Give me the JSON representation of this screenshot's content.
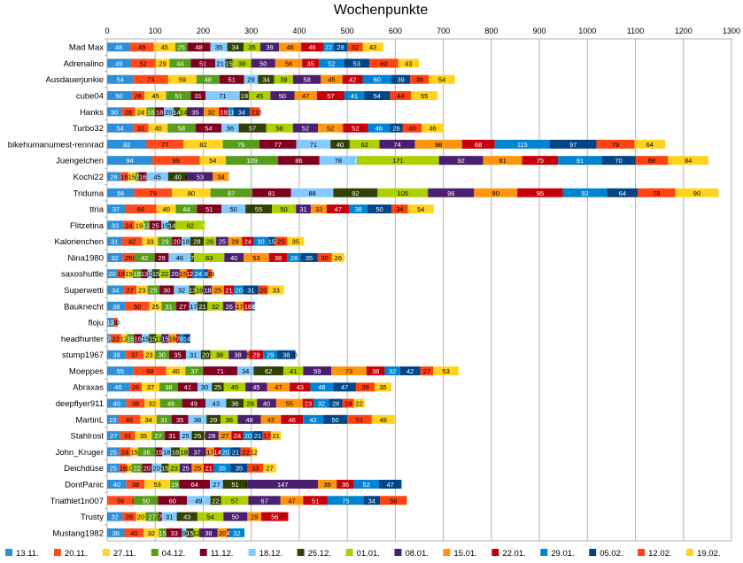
{
  "chart_data": {
    "type": "bar",
    "orientation": "horizontal",
    "stacked": true,
    "title": "Wochenpunkte",
    "xlim": [
      0,
      1300
    ],
    "xticks": [
      0,
      100,
      200,
      300,
      400,
      500,
      600,
      700,
      800,
      900,
      1000,
      1100,
      1200,
      1300
    ],
    "grid": true,
    "legend_position": "bottom",
    "series_names": [
      "13.11.",
      "20.11.",
      "27.11.",
      "04.12.",
      "11.12.",
      "18.12.",
      "25.12.",
      "01.01.",
      "08.01.",
      "15.01.",
      "22.01.",
      "29.01.",
      "05.02.",
      "12.02.",
      "19.02."
    ],
    "colors": [
      "#2e8fd6",
      "#ff4a1c",
      "#ffd320",
      "#579d1c",
      "#7e0021",
      "#83caff",
      "#314004",
      "#aecf00",
      "#4b1f6f",
      "#ff950e",
      "#c5000b",
      "#0084d1",
      "#004586",
      "#ff420e",
      "#ffd320"
    ],
    "rows": [
      {
        "name": "Mad Max",
        "values": [
          48,
          49,
          45,
          25,
          48,
          35,
          34,
          35,
          39,
          46,
          46,
          22,
          28,
          32,
          43
        ]
      },
      {
        "name": "Adrenalino",
        "values": [
          49,
          52,
          29,
          44,
          51,
          21,
          15,
          39,
          50,
          56,
          35,
          52,
          53,
          60,
          43
        ]
      },
      {
        "name": "Ausdauerjunkie",
        "values": [
          54,
          73,
          59,
          48,
          51,
          29,
          34,
          39,
          58,
          45,
          42,
          60,
          39,
          39,
          54
        ]
      },
      {
        "name": "cube04",
        "values": [
          50,
          28,
          45,
          51,
          31,
          71,
          19,
          45,
          50,
          47,
          57,
          41,
          54,
          44,
          55
        ]
      },
      {
        "name": "Hanks",
        "values": [
          30,
          28,
          24,
          18,
          18,
          20,
          14,
          14,
          35,
          32,
          19,
          11,
          34,
          21,
          0
        ]
      },
      {
        "name": "Turbo32",
        "values": [
          54,
          32,
          40,
          58,
          54,
          36,
          57,
          56,
          52,
          52,
          52,
          46,
          26,
          40,
          46
        ]
      },
      {
        "name": "bikehumanumest-rennrad",
        "values": [
          82,
          77,
          82,
          76,
          77,
          71,
          40,
          62,
          74,
          98,
          68,
          115,
          97,
          79,
          64
        ]
      },
      {
        "name": "Juengelchen",
        "values": [
          94,
          99,
          54,
          109,
          86,
          78,
          0,
          171,
          92,
          81,
          75,
          91,
          70,
          68,
          84
        ]
      },
      {
        "name": "Kochi22",
        "values": [
          28,
          16,
          15,
          7,
          16,
          45,
          40,
          0,
          53,
          34,
          0
        ]
      },
      {
        "name": "Triduma",
        "values": [
          56,
          79,
          80,
          87,
          81,
          88,
          92,
          105,
          96,
          90,
          95,
          92,
          64,
          78,
          90
        ]
      },
      {
        "name": "ttria",
        "values": [
          37,
          66,
          40,
          44,
          51,
          50,
          55,
          50,
          31,
          33,
          47,
          38,
          50,
          34,
          54
        ]
      },
      {
        "name": "Flitzetina",
        "values": [
          33,
          24,
          19,
          12,
          25,
          15,
          14,
          62,
          0
        ]
      },
      {
        "name": "Kalorienchen",
        "values": [
          31,
          42,
          33,
          29,
          20,
          18,
          28,
          26,
          25,
          29,
          24,
          30,
          15,
          25,
          35
        ]
      },
      {
        "name": "Nina1980",
        "values": [
          32,
          25,
          0,
          42,
          29,
          46,
          7,
          63,
          40,
          53,
          38,
          28,
          35,
          30,
          26
        ]
      },
      {
        "name": "saxoshuttle",
        "values": [
          20,
          18,
          15,
          18,
          13,
          10,
          15,
          22,
          20,
          15,
          12,
          24,
          8,
          8,
          3
        ]
      },
      {
        "name": "Superwetti",
        "values": [
          34,
          27,
          23,
          25,
          30,
          32,
          13,
          16,
          18,
          25,
          21,
          20,
          31,
          20,
          33
        ]
      },
      {
        "name": "Bauknecht",
        "values": [
          38,
          50,
          25,
          31,
          27,
          17,
          21,
          32,
          26,
          17,
          18,
          6,
          0
        ]
      },
      {
        "name": "floju",
        "values": [
          13,
          9,
          0
        ]
      },
      {
        "name": "headhunter",
        "values": [
          7,
          22,
          12,
          15,
          16,
          15,
          15,
          11,
          15,
          16,
          7,
          8,
          14
        ]
      },
      {
        "name": "stump1967",
        "values": [
          39,
          37,
          23,
          30,
          35,
          31,
          20,
          38,
          38,
          5,
          29,
          29,
          38,
          0
        ]
      },
      {
        "name": "Moeppes",
        "values": [
          55,
          68,
          40,
          37,
          71,
          34,
          62,
          41,
          59,
          73,
          38,
          32,
          42,
          27,
          53
        ]
      },
      {
        "name": "Abraxas",
        "values": [
          46,
          26,
          37,
          38,
          41,
          30,
          25,
          45,
          45,
          47,
          43,
          48,
          47,
          39,
          35
        ]
      },
      {
        "name": "deepflyer911",
        "values": [
          40,
          38,
          32,
          46,
          49,
          43,
          36,
          28,
          40,
          55,
          23,
          32,
          28,
          24,
          22
        ]
      },
      {
        "name": "MartinL",
        "values": [
          23,
          46,
          34,
          31,
          35,
          38,
          29,
          36,
          48,
          42,
          46,
          42,
          50,
          51,
          48
        ]
      },
      {
        "name": "Stahlrost",
        "values": [
          27,
          31,
          35,
          27,
          31,
          25,
          25,
          3,
          28,
          27,
          24,
          20,
          21,
          17,
          21
        ]
      },
      {
        "name": "John_Kruger",
        "values": [
          25,
          24,
          15,
          36,
          15,
          18,
          18,
          18,
          37,
          17,
          14,
          20,
          21,
          22,
          12
        ]
      },
      {
        "name": "Deichdüse",
        "values": [
          25,
          16,
          10,
          22,
          20,
          20,
          15,
          23,
          25,
          25,
          21,
          35,
          35,
          33,
          27
        ]
      },
      {
        "name": "DontPanic",
        "values": [
          40,
          38,
          53,
          19,
          64,
          27,
          51,
          0,
          147,
          39,
          36,
          52,
          47
        ]
      },
      {
        "name": "Triathlet1n007",
        "values": [
          0,
          56,
          0,
          50,
          60,
          49,
          22,
          57,
          67,
          47,
          51,
          75,
          34,
          56
        ]
      },
      {
        "name": "Trusty",
        "values": [
          32,
          28,
          20,
          27,
          7,
          31,
          43,
          54,
          50,
          29,
          56
        ]
      },
      {
        "name": "Mustang1982",
        "values": [
          36,
          40,
          32,
          15,
          33,
          9,
          15,
          12,
          38,
          20,
          4,
          32
        ]
      }
    ]
  }
}
